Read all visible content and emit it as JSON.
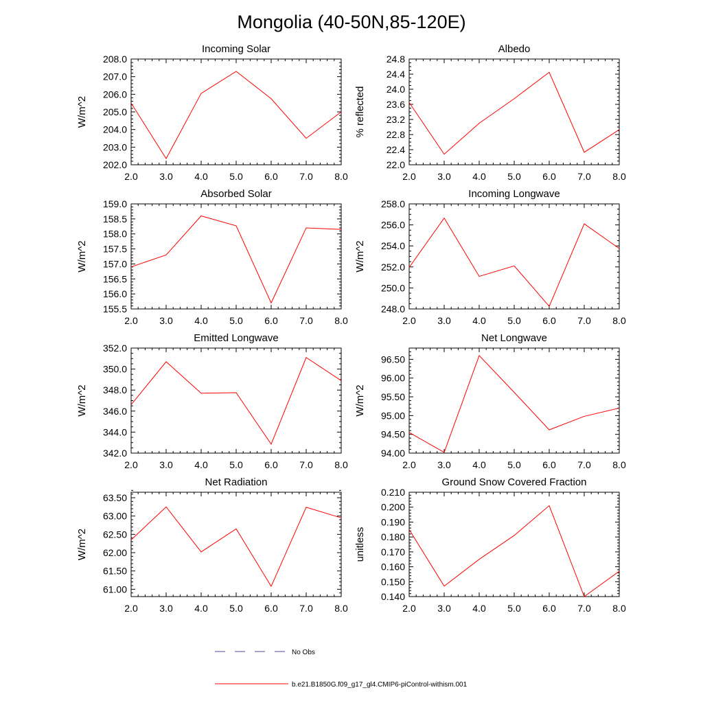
{
  "figure": {
    "title": "Mongolia (40-50N,85-120E)"
  },
  "legend": {
    "entries": [
      {
        "label": "No Obs",
        "style": "dashed",
        "color": "#4a4a9a"
      },
      {
        "label": "b.e21.B1850G.f09_g17_gl4.CMIP6-piControl-withism.001",
        "style": "solid",
        "color": "#ff0000"
      }
    ]
  },
  "chart_data": [
    {
      "type": "line",
      "title": "Incoming Solar",
      "xlabel": "",
      "ylabel": "W/m^2",
      "xlim": [
        2,
        8
      ],
      "ylim": [
        202.0,
        208.0
      ],
      "xticks": [
        2,
        3,
        4,
        5,
        6,
        7,
        8
      ],
      "xtick_labels": [
        "2.0",
        "3.0",
        "4.0",
        "5.0",
        "6.0",
        "7.0",
        "8.0"
      ],
      "yticks": [
        202.0,
        203.0,
        204.0,
        205.0,
        206.0,
        207.0,
        208.0
      ],
      "ytick_labels": [
        "202.0",
        "203.0",
        "204.0",
        "205.0",
        "206.0",
        "207.0",
        "208.0"
      ],
      "yminor_step": 0.2,
      "series": [
        {
          "name": "b.e21.B1850G.f09_g17_gl4.CMIP6-piControl-withism.001",
          "color": "#ff0000",
          "x": [
            2,
            3,
            4,
            5,
            6,
            7,
            8
          ],
          "values": [
            205.5,
            202.35,
            206.05,
            207.3,
            205.75,
            203.5,
            205.0
          ]
        }
      ]
    },
    {
      "type": "line",
      "title": "Albedo",
      "xlabel": "",
      "ylabel": "% reflected",
      "xlim": [
        2,
        8
      ],
      "ylim": [
        22.0,
        24.8
      ],
      "xticks": [
        2,
        3,
        4,
        5,
        6,
        7,
        8
      ],
      "xtick_labels": [
        "2.0",
        "3.0",
        "4.0",
        "5.0",
        "6.0",
        "7.0",
        "8.0"
      ],
      "yticks": [
        22.0,
        22.4,
        22.8,
        23.2,
        23.6,
        24.0,
        24.4,
        24.8
      ],
      "ytick_labels": [
        "22.0",
        "22.4",
        "22.8",
        "23.2",
        "23.6",
        "24.0",
        "24.4",
        "24.8"
      ],
      "yminor_step": 0.1,
      "series": [
        {
          "name": "b.e21.B1850G.f09_g17_gl4.CMIP6-piControl-withism.001",
          "color": "#ff0000",
          "x": [
            2,
            3,
            4,
            5,
            6,
            7,
            8
          ],
          "values": [
            23.65,
            22.28,
            23.1,
            23.75,
            24.45,
            22.33,
            22.93
          ]
        }
      ]
    },
    {
      "type": "line",
      "title": "Absorbed Solar",
      "xlabel": "",
      "ylabel": "W/m^2",
      "xlim": [
        2,
        8
      ],
      "ylim": [
        155.5,
        159.0
      ],
      "xticks": [
        2,
        3,
        4,
        5,
        6,
        7,
        8
      ],
      "xtick_labels": [
        "2.0",
        "3.0",
        "4.0",
        "5.0",
        "6.0",
        "7.0",
        "8.0"
      ],
      "yticks": [
        155.5,
        156.0,
        156.5,
        157.0,
        157.5,
        158.0,
        158.5,
        159.0
      ],
      "ytick_labels": [
        "155.5",
        "156.0",
        "156.5",
        "157.0",
        "157.5",
        "158.0",
        "158.5",
        "159.0"
      ],
      "yminor_step": 0.1,
      "series": [
        {
          "name": "b.e21.B1850G.f09_g17_gl4.CMIP6-piControl-withism.001",
          "color": "#ff0000",
          "x": [
            2,
            3,
            4,
            5,
            6,
            7,
            8
          ],
          "values": [
            156.9,
            157.3,
            158.6,
            158.27,
            155.7,
            158.2,
            158.15
          ]
        }
      ]
    },
    {
      "type": "line",
      "title": "Incoming Longwave",
      "xlabel": "",
      "ylabel": "W/m^2",
      "xlim": [
        2,
        8
      ],
      "ylim": [
        248.0,
        258.0
      ],
      "xticks": [
        2,
        3,
        4,
        5,
        6,
        7,
        8
      ],
      "xtick_labels": [
        "2.0",
        "3.0",
        "4.0",
        "5.0",
        "6.0",
        "7.0",
        "8.0"
      ],
      "yticks": [
        248.0,
        250.0,
        252.0,
        254.0,
        256.0,
        258.0
      ],
      "ytick_labels": [
        "248.0",
        "250.0",
        "252.0",
        "254.0",
        "256.0",
        "258.0"
      ],
      "yminor_step": 0.5,
      "series": [
        {
          "name": "b.e21.B1850G.f09_g17_gl4.CMIP6-piControl-withism.001",
          "color": "#ff0000",
          "x": [
            2,
            3,
            4,
            5,
            6,
            7,
            8
          ],
          "values": [
            251.95,
            256.65,
            251.1,
            252.1,
            248.25,
            256.1,
            253.75
          ]
        }
      ]
    },
    {
      "type": "line",
      "title": "Emitted Longwave",
      "xlabel": "",
      "ylabel": "W/m^2",
      "xlim": [
        2,
        8
      ],
      "ylim": [
        342.0,
        352.0
      ],
      "xticks": [
        2,
        3,
        4,
        5,
        6,
        7,
        8
      ],
      "xtick_labels": [
        "2.0",
        "3.0",
        "4.0",
        "5.0",
        "6.0",
        "7.0",
        "8.0"
      ],
      "yticks": [
        342.0,
        344.0,
        346.0,
        348.0,
        350.0,
        352.0
      ],
      "ytick_labels": [
        "342.0",
        "344.0",
        "346.0",
        "348.0",
        "350.0",
        "352.0"
      ],
      "yminor_step": 0.5,
      "series": [
        {
          "name": "b.e21.B1850G.f09_g17_gl4.CMIP6-piControl-withism.001",
          "color": "#ff0000",
          "x": [
            2,
            3,
            4,
            5,
            6,
            7,
            8
          ],
          "values": [
            346.6,
            350.7,
            347.7,
            347.75,
            342.85,
            351.1,
            348.9
          ]
        }
      ]
    },
    {
      "type": "line",
      "title": "Net Longwave",
      "xlabel": "",
      "ylabel": "W/m^2",
      "xlim": [
        2,
        8
      ],
      "ylim": [
        94.0,
        96.8
      ],
      "xticks": [
        2,
        3,
        4,
        5,
        6,
        7,
        8
      ],
      "xtick_labels": [
        "2.0",
        "3.0",
        "4.0",
        "5.0",
        "6.0",
        "7.0",
        "8.0"
      ],
      "yticks": [
        94.0,
        94.5,
        95.0,
        95.5,
        96.0,
        96.5
      ],
      "ytick_labels": [
        "94.00",
        "94.50",
        "95.00",
        "95.50",
        "96.00",
        "96.50"
      ],
      "yminor_step": 0.1,
      "series": [
        {
          "name": "b.e21.B1850G.f09_g17_gl4.CMIP6-piControl-withism.001",
          "color": "#ff0000",
          "x": [
            2,
            3,
            4,
            5,
            6,
            7,
            8
          ],
          "values": [
            94.55,
            94.02,
            96.6,
            95.62,
            94.62,
            94.98,
            95.2
          ]
        }
      ]
    },
    {
      "type": "line",
      "title": "Net Radiation",
      "xlabel": "",
      "ylabel": "W/m^2",
      "xlim": [
        2,
        8
      ],
      "ylim": [
        60.8,
        63.65
      ],
      "xticks": [
        2,
        3,
        4,
        5,
        6,
        7,
        8
      ],
      "xtick_labels": [
        "2.0",
        "3.0",
        "4.0",
        "5.0",
        "6.0",
        "7.0",
        "8.0"
      ],
      "yticks": [
        61.0,
        61.5,
        62.0,
        62.5,
        63.0,
        63.5
      ],
      "ytick_labels": [
        "61.00",
        "61.50",
        "62.00",
        "62.50",
        "63.00",
        "63.50"
      ],
      "yminor_step": 0.1,
      "series": [
        {
          "name": "b.e21.B1850G.f09_g17_gl4.CMIP6-piControl-withism.001",
          "color": "#ff0000",
          "x": [
            2,
            3,
            4,
            5,
            6,
            7,
            8
          ],
          "values": [
            62.35,
            63.25,
            62.02,
            62.65,
            61.08,
            63.24,
            62.95
          ]
        }
      ]
    },
    {
      "type": "line",
      "title": "Ground Snow Covered Fraction",
      "xlabel": "",
      "ylabel": "unitless",
      "xlim": [
        2,
        8
      ],
      "ylim": [
        0.14,
        0.21
      ],
      "xticks": [
        2,
        3,
        4,
        5,
        6,
        7,
        8
      ],
      "xtick_labels": [
        "2.0",
        "3.0",
        "4.0",
        "5.0",
        "6.0",
        "7.0",
        "8.0"
      ],
      "yticks": [
        0.14,
        0.15,
        0.16,
        0.17,
        0.18,
        0.19,
        0.2,
        0.21
      ],
      "ytick_labels": [
        "0.140",
        "0.150",
        "0.160",
        "0.170",
        "0.180",
        "0.190",
        "0.200",
        "0.210"
      ],
      "yminor_step": 0.002,
      "series": [
        {
          "name": "b.e21.B1850G.f09_g17_gl4.CMIP6-piControl-withism.001",
          "color": "#ff0000",
          "x": [
            2,
            3,
            4,
            5,
            6,
            7,
            8
          ],
          "values": [
            0.185,
            0.147,
            0.165,
            0.181,
            0.201,
            0.14,
            0.157
          ]
        }
      ]
    }
  ]
}
